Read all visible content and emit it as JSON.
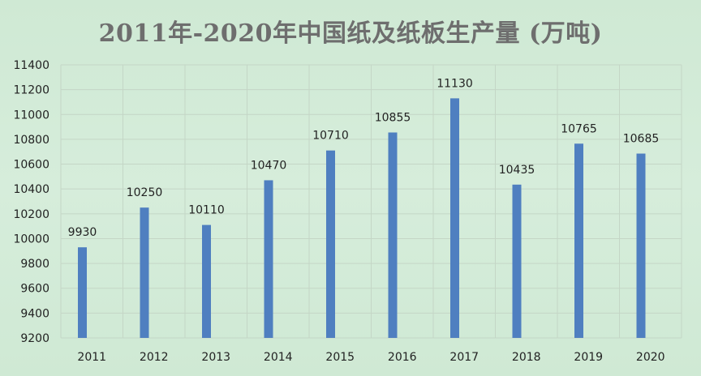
{
  "chart_data": {
    "type": "bar",
    "title": "2011年-2020年中国纸及纸板生产量 (万吨)",
    "xlabel": "",
    "ylabel": "",
    "categories": [
      "2011",
      "2012",
      "2013",
      "2014",
      "2015",
      "2016",
      "2017",
      "2018",
      "2019",
      "2020"
    ],
    "values": [
      9930,
      10250,
      10110,
      10470,
      10710,
      10855,
      11130,
      10435,
      10765,
      10685
    ],
    "ylim": [
      9200,
      11400
    ],
    "yticks": [
      9200,
      9400,
      9600,
      9800,
      10000,
      10200,
      10400,
      10600,
      10800,
      11000,
      11200,
      11400
    ],
    "grid": true,
    "legend": "none",
    "bar_color": "#4f7fc0"
  }
}
